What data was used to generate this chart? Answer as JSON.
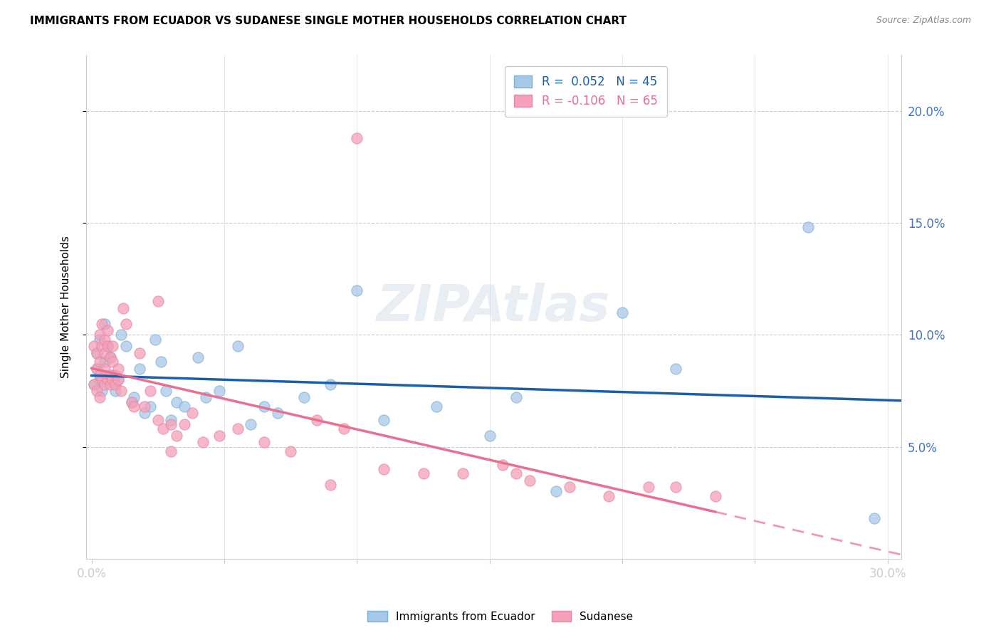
{
  "title": "IMMIGRANTS FROM ECUADOR VS SUDANESE SINGLE MOTHER HOUSEHOLDS CORRELATION CHART",
  "source": "Source: ZipAtlas.com",
  "ylabel": "Single Mother Households",
  "ytick_labels": [
    "5.0%",
    "10.0%",
    "15.0%",
    "20.0%"
  ],
  "ytick_values": [
    0.05,
    0.1,
    0.15,
    0.2
  ],
  "xtick_values": [
    0.0,
    0.05,
    0.1,
    0.15,
    0.2,
    0.25,
    0.3
  ],
  "xlim": [
    -0.002,
    0.305
  ],
  "ylim": [
    0.0,
    0.225
  ],
  "ecuador_color": "#a8c8e8",
  "sudanese_color": "#f4a0b8",
  "ecuador_line_color": "#1a5fa8",
  "sudanese_line_color": "#e87090",
  "legend_label_ecuador": "Immigrants from Ecuador",
  "legend_label_sudanese": "Sudanese",
  "R_ecuador": 0.052,
  "N_ecuador": 45,
  "R_sudanese": -0.106,
  "N_sudanese": 65,
  "ecuador_scatter_x": [
    0.001,
    0.002,
    0.002,
    0.003,
    0.003,
    0.004,
    0.005,
    0.005,
    0.006,
    0.007,
    0.008,
    0.009,
    0.01,
    0.011,
    0.013,
    0.015,
    0.016,
    0.018,
    0.02,
    0.022,
    0.024,
    0.026,
    0.028,
    0.03,
    0.032,
    0.035,
    0.04,
    0.043,
    0.048,
    0.055,
    0.06,
    0.065,
    0.07,
    0.08,
    0.09,
    0.1,
    0.11,
    0.13,
    0.15,
    0.16,
    0.175,
    0.2,
    0.22,
    0.27,
    0.295
  ],
  "ecuador_scatter_y": [
    0.078,
    0.092,
    0.085,
    0.098,
    0.08,
    0.075,
    0.105,
    0.088,
    0.095,
    0.09,
    0.082,
    0.075,
    0.08,
    0.1,
    0.095,
    0.07,
    0.072,
    0.085,
    0.065,
    0.068,
    0.098,
    0.088,
    0.075,
    0.062,
    0.07,
    0.068,
    0.09,
    0.072,
    0.075,
    0.095,
    0.06,
    0.068,
    0.065,
    0.072,
    0.078,
    0.12,
    0.062,
    0.068,
    0.055,
    0.072,
    0.03,
    0.11,
    0.085,
    0.148,
    0.018
  ],
  "sudanese_scatter_x": [
    0.001,
    0.001,
    0.002,
    0.002,
    0.002,
    0.003,
    0.003,
    0.003,
    0.003,
    0.004,
    0.004,
    0.004,
    0.005,
    0.005,
    0.005,
    0.005,
    0.006,
    0.006,
    0.006,
    0.007,
    0.007,
    0.007,
    0.008,
    0.008,
    0.008,
    0.009,
    0.009,
    0.01,
    0.01,
    0.011,
    0.012,
    0.013,
    0.015,
    0.016,
    0.018,
    0.02,
    0.022,
    0.025,
    0.027,
    0.03,
    0.032,
    0.035,
    0.038,
    0.042,
    0.048,
    0.055,
    0.065,
    0.075,
    0.085,
    0.095,
    0.11,
    0.125,
    0.14,
    0.155,
    0.165,
    0.18,
    0.195,
    0.21,
    0.22,
    0.235,
    0.025,
    0.03,
    0.09,
    0.1,
    0.16
  ],
  "sudanese_scatter_y": [
    0.078,
    0.095,
    0.085,
    0.092,
    0.075,
    0.1,
    0.088,
    0.082,
    0.072,
    0.095,
    0.105,
    0.08,
    0.092,
    0.098,
    0.085,
    0.078,
    0.102,
    0.095,
    0.08,
    0.09,
    0.082,
    0.078,
    0.095,
    0.088,
    0.08,
    0.082,
    0.078,
    0.085,
    0.08,
    0.075,
    0.112,
    0.105,
    0.07,
    0.068,
    0.092,
    0.068,
    0.075,
    0.062,
    0.058,
    0.06,
    0.055,
    0.06,
    0.065,
    0.052,
    0.055,
    0.058,
    0.052,
    0.048,
    0.062,
    0.058,
    0.04,
    0.038,
    0.038,
    0.042,
    0.035,
    0.032,
    0.028,
    0.032,
    0.032,
    0.028,
    0.115,
    0.048,
    0.033,
    0.188,
    0.038
  ]
}
